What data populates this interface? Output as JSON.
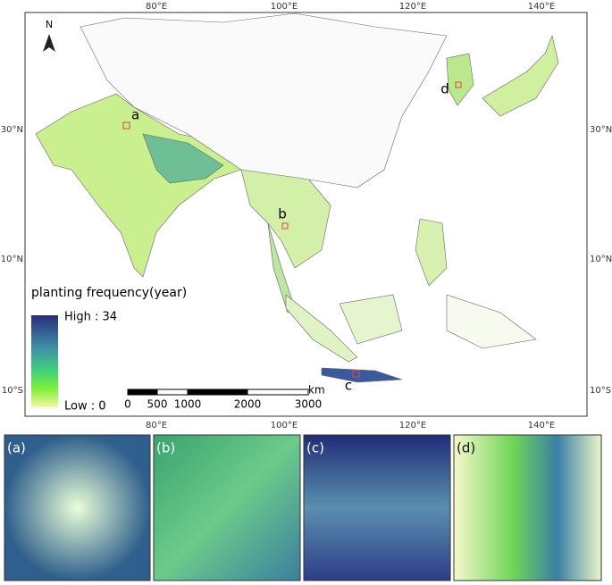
{
  "map": {
    "longitude_labels": [
      "80°E",
      "100°E",
      "120°E",
      "140°E"
    ],
    "latitude_labels": [
      "30°N",
      "10°N",
      "10°S"
    ],
    "north": "N",
    "sites": [
      "a",
      "b",
      "c",
      "d"
    ],
    "legend": {
      "title": "planting frequency(year)",
      "high": "High : 34",
      "low": "Low : 0"
    },
    "scale_bar": {
      "ticks": [
        "0",
        "500",
        "1000",
        "2000",
        "3000"
      ],
      "unit": "km"
    }
  },
  "panels": [
    "(a)",
    "(b)",
    "(c)",
    "(d)"
  ]
}
